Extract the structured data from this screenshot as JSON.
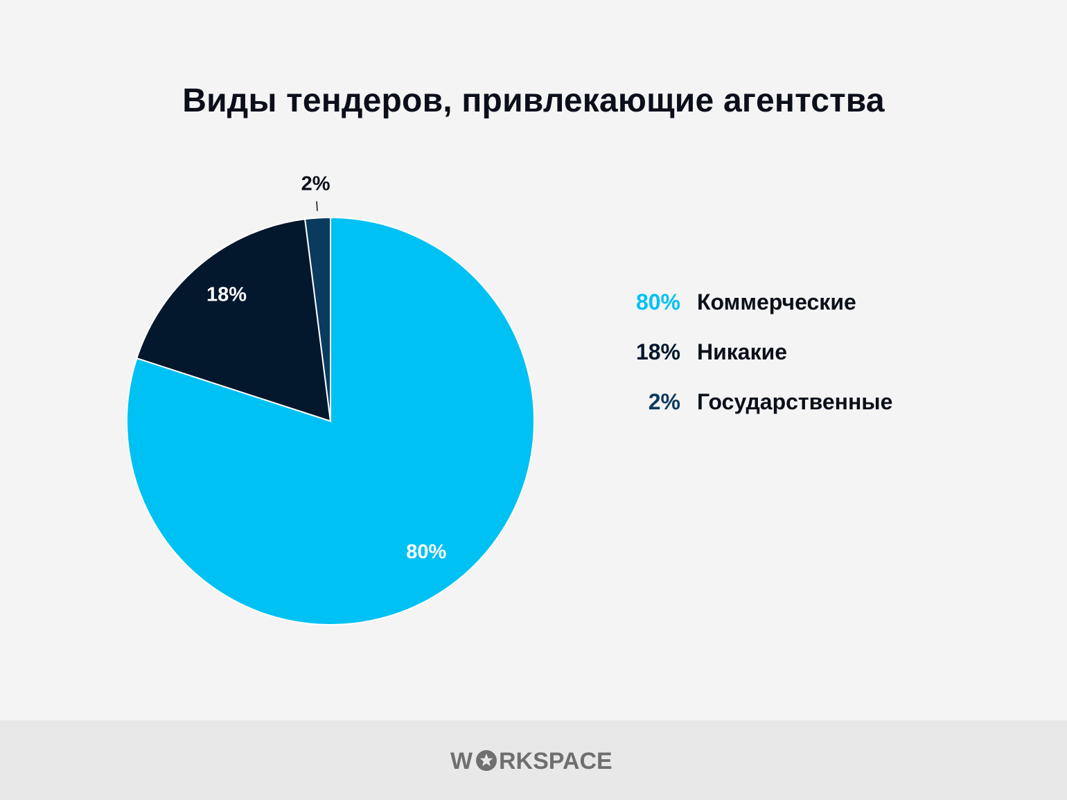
{
  "colors": {
    "background": "#f4f4f4",
    "footer_background": "#e8e8e8",
    "commercial": "#00c1f3",
    "none": "#03172d",
    "government": "#0a3a5e",
    "brand": "#6f6f6f"
  },
  "chart_data": {
    "type": "pie",
    "title": "Виды тендеров, привлекающие агентства",
    "slices": [
      {
        "name": "Коммерческие",
        "value": 80,
        "label": "80%",
        "color": "#00c1f3",
        "label_color": "#ffffff"
      },
      {
        "name": "Никакие",
        "value": 18,
        "label": "18%",
        "color": "#03172d",
        "label_color": "#ffffff"
      },
      {
        "name": "Государственные",
        "value": 2,
        "label": "2%",
        "color": "#0a3a5e",
        "label_color": "#0b0f1a"
      }
    ],
    "legend": [
      {
        "pct": "80%",
        "name": "Коммерческие",
        "color": "#00c1f3"
      },
      {
        "pct": "18%",
        "name": "Никакие",
        "color": "#03172d"
      },
      {
        "pct": "2%",
        "name": "Государственные",
        "color": "#0a3a5e"
      }
    ],
    "legend_position": "right"
  },
  "footer": {
    "brand": "WORKSPACE"
  }
}
